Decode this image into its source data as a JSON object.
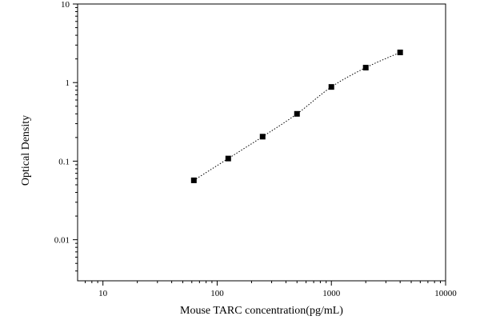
{
  "chart_data": {
    "type": "scatter",
    "xlabel": "Mouse TARC concentration(pg/mL)",
    "ylabel": "Optical Density",
    "xscale": "log",
    "yscale": "log",
    "xlim": [
      6,
      10000
    ],
    "ylim": [
      0.003,
      10
    ],
    "x_ticks": [
      10,
      100,
      1000,
      10000
    ],
    "x_tick_labels": [
      "10",
      "100",
      "1000",
      "10000"
    ],
    "y_ticks": [
      0.01,
      0.1,
      1,
      10
    ],
    "y_tick_labels": [
      "0.01",
      "0.1",
      "1",
      "10"
    ],
    "grid": false,
    "legend": "none",
    "series": [
      {
        "marker": "square",
        "color": "#000000",
        "x": [
          62.5,
          125,
          250,
          500,
          1000,
          2000,
          4000
        ],
        "y": [
          0.057,
          0.108,
          0.205,
          0.4,
          0.88,
          1.55,
          2.42
        ]
      }
    ],
    "fit_curve": {
      "style": "dotted",
      "color": "#000000"
    }
  }
}
